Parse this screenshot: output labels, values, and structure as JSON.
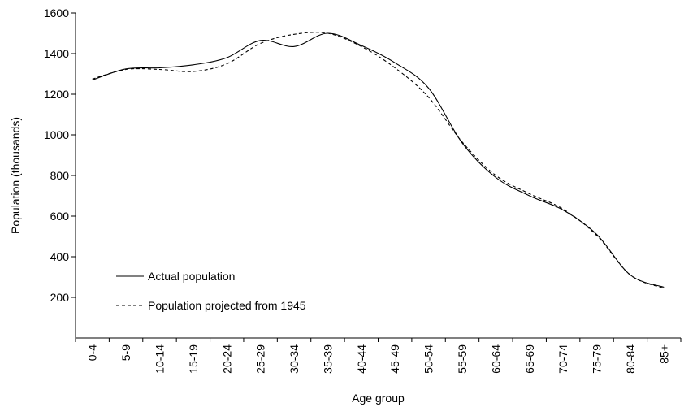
{
  "chart_data": {
    "type": "line",
    "title": "",
    "xlabel": "Age group",
    "ylabel": "Population (thousands)",
    "categories": [
      "0-4",
      "5-9",
      "10-14",
      "15-19",
      "20-24",
      "25-29",
      "30-34",
      "35-39",
      "40-44",
      "45-49",
      "50-54",
      "55-59",
      "60-64",
      "65-69",
      "70-74",
      "75-79",
      "80-84",
      "85+"
    ],
    "ylim": [
      0,
      1600
    ],
    "yticks": [
      "200",
      "400",
      "600",
      "800",
      "1000",
      "1200",
      "1400",
      "1600"
    ],
    "grid": false,
    "legend_position": "bottom-left",
    "series": [
      {
        "name": "Actual population",
        "style": "solid",
        "color": "#000000",
        "values": [
          1270,
          1325,
          1330,
          1345,
          1380,
          1465,
          1435,
          1500,
          1440,
          1355,
          1230,
          960,
          790,
          700,
          630,
          510,
          310,
          250
        ]
      },
      {
        "name": "Population projected from 1945",
        "style": "dashed",
        "color": "#000000",
        "values": [
          1275,
          1322,
          1322,
          1312,
          1350,
          1450,
          1495,
          1500,
          1435,
          1330,
          1185,
          965,
          800,
          710,
          635,
          505,
          310,
          245
        ]
      }
    ]
  }
}
